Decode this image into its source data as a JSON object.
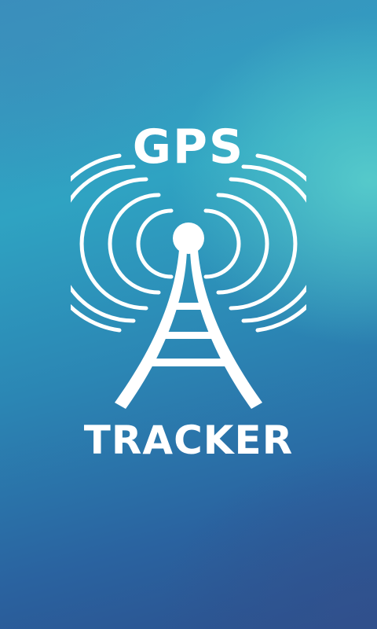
{
  "splash": {
    "title_top": "GPS",
    "title_bottom": "TRACKER",
    "logo_icon": "signal-tower-icon"
  },
  "colors": {
    "background_top": "#3a8fbd",
    "background_accent": "#5cd2cd",
    "background_bottom": "#2c4f8c",
    "foreground": "#ffffff"
  }
}
